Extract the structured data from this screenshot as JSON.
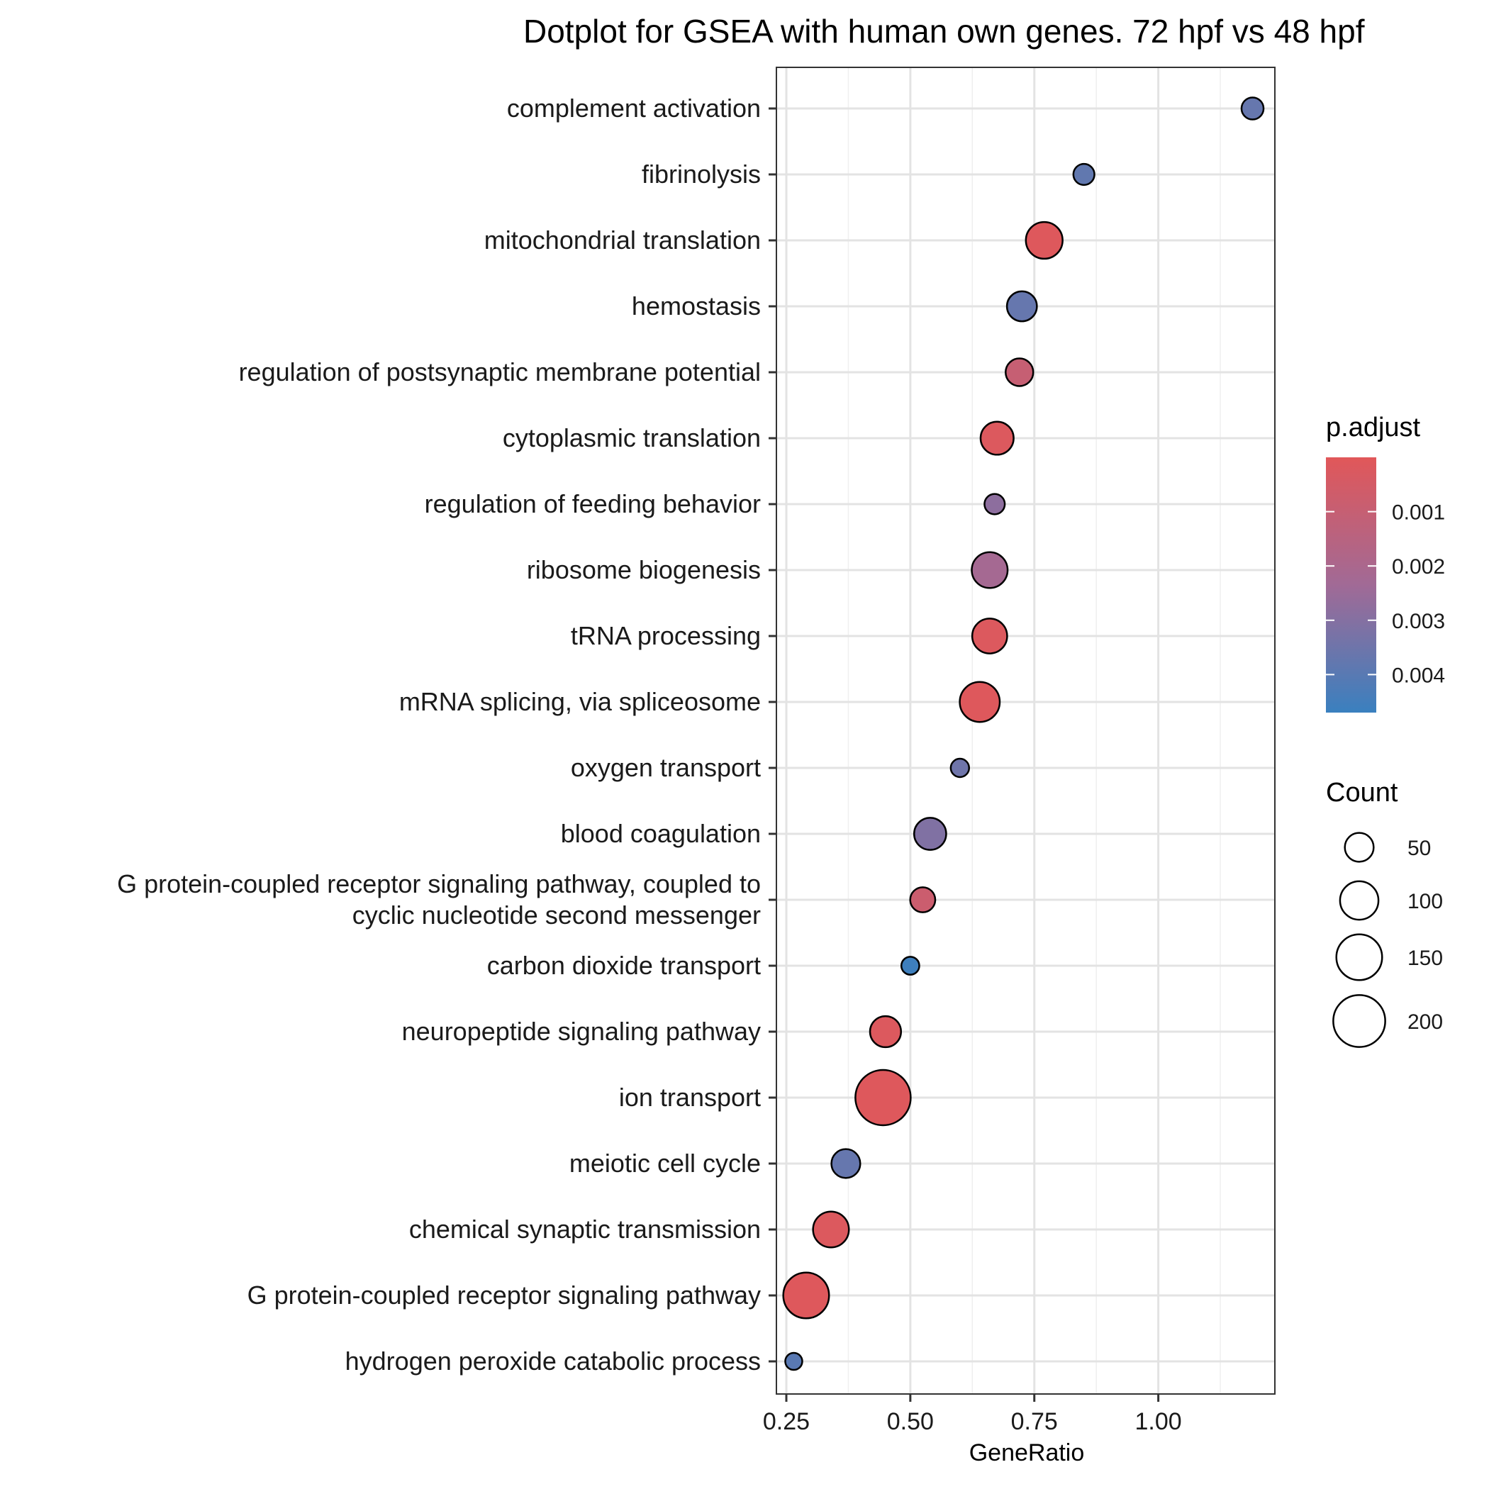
{
  "chart_data": {
    "type": "scatter",
    "title": "Dotplot for GSEA with human own genes. 72 hpf vs 48 hpf",
    "xlabel": "GeneRatio",
    "ylabel": "",
    "xlim": [
      0.23,
      1.235
    ],
    "xticks": [
      0.25,
      0.5,
      0.75,
      1.0
    ],
    "xtick_labels": [
      "0.25",
      "0.50",
      "0.75",
      "1.00"
    ],
    "grid": true,
    "categories": [
      "complement activation",
      "fibrinolysis",
      "mitochondrial translation",
      "hemostasis",
      "regulation of postsynaptic membrane potential",
      "cytoplasmic translation",
      "regulation of feeding behavior",
      "ribosome biogenesis",
      "tRNA processing",
      "mRNA splicing, via spliceosome",
      "oxygen transport",
      "blood coagulation",
      "G protein-coupled receptor signaling pathway, coupled to cyclic nucleotide second messenger",
      "carbon dioxide transport",
      "neuropeptide signaling pathway",
      "ion transport",
      "meiotic cell cycle",
      "chemical synaptic transmission",
      "G protein-coupled receptor signaling pathway",
      "hydrogen peroxide catabolic process"
    ],
    "category_lines": [
      [
        "complement activation"
      ],
      [
        "fibrinolysis"
      ],
      [
        "mitochondrial translation"
      ],
      [
        "hemostasis"
      ],
      [
        "regulation of postsynaptic membrane potential"
      ],
      [
        "cytoplasmic translation"
      ],
      [
        "regulation of feeding behavior"
      ],
      [
        "ribosome biogenesis"
      ],
      [
        "tRNA processing"
      ],
      [
        "mRNA splicing, via spliceosome"
      ],
      [
        "oxygen transport"
      ],
      [
        "blood coagulation"
      ],
      [
        "G protein-coupled receptor signaling pathway, coupled to",
        "cyclic nucleotide second messenger"
      ],
      [
        "carbon dioxide transport"
      ],
      [
        "neuropeptide signaling pathway"
      ],
      [
        "ion transport"
      ],
      [
        "meiotic cell cycle"
      ],
      [
        "chemical synaptic transmission"
      ],
      [
        "G protein-coupled receptor signaling pathway"
      ],
      [
        "hydrogen peroxide catabolic process"
      ]
    ],
    "points": [
      {
        "term": "complement activation",
        "gene_ratio": 1.19,
        "count": 25,
        "p_adjust": 0.0037
      },
      {
        "term": "fibrinolysis",
        "gene_ratio": 0.85,
        "count": 22,
        "p_adjust": 0.0038
      },
      {
        "term": "mitochondrial translation",
        "gene_ratio": 0.77,
        "count": 90,
        "p_adjust": 0.0001
      },
      {
        "term": "hemostasis",
        "gene_ratio": 0.725,
        "count": 55,
        "p_adjust": 0.0037
      },
      {
        "term": "regulation of postsynaptic membrane potential",
        "gene_ratio": 0.72,
        "count": 45,
        "p_adjust": 0.001
      },
      {
        "term": "cytoplasmic translation",
        "gene_ratio": 0.675,
        "count": 70,
        "p_adjust": 0.0002
      },
      {
        "term": "regulation of feeding behavior",
        "gene_ratio": 0.67,
        "count": 20,
        "p_adjust": 0.0028
      },
      {
        "term": "ribosome biogenesis",
        "gene_ratio": 0.66,
        "count": 85,
        "p_adjust": 0.0022
      },
      {
        "term": "tRNA processing",
        "gene_ratio": 0.66,
        "count": 80,
        "p_adjust": 0.0002
      },
      {
        "term": "mRNA splicing, via spliceosome",
        "gene_ratio": 0.64,
        "count": 110,
        "p_adjust": 0.0001
      },
      {
        "term": "oxygen transport",
        "gene_ratio": 0.6,
        "count": 15,
        "p_adjust": 0.0035
      },
      {
        "term": "blood coagulation",
        "gene_ratio": 0.54,
        "count": 65,
        "p_adjust": 0.0031
      },
      {
        "term": "G protein-coupled receptor signaling pathway, coupled to cyclic nucleotide second messenger",
        "gene_ratio": 0.525,
        "count": 35,
        "p_adjust": 0.0008
      },
      {
        "term": "carbon dioxide transport",
        "gene_ratio": 0.5,
        "count": 14,
        "p_adjust": 0.0046
      },
      {
        "term": "neuropeptide signaling pathway",
        "gene_ratio": 0.45,
        "count": 60,
        "p_adjust": 0.0002
      },
      {
        "term": "ion transport",
        "gene_ratio": 0.445,
        "count": 230,
        "p_adjust": 0.0001
      },
      {
        "term": "meiotic cell cycle",
        "gene_ratio": 0.37,
        "count": 50,
        "p_adjust": 0.0037
      },
      {
        "term": "chemical synaptic transmission",
        "gene_ratio": 0.34,
        "count": 85,
        "p_adjust": 0.0002
      },
      {
        "term": "G protein-coupled receptor signaling pathway",
        "gene_ratio": 0.29,
        "count": 150,
        "p_adjust": 0.0001
      },
      {
        "term": "hydrogen peroxide catabolic process",
        "gene_ratio": 0.265,
        "count": 12,
        "p_adjust": 0.004
      }
    ],
    "color_legend": {
      "title": "p.adjust",
      "range": [
        0.0,
        0.0047
      ],
      "ticks": [
        0.001,
        0.002,
        0.003,
        0.004
      ],
      "tick_labels": [
        "0.001",
        "0.002",
        "0.003",
        "0.004"
      ],
      "low_color": "#e15759",
      "high_color": "#3a80bf"
    },
    "size_legend": {
      "title": "Count",
      "values": [
        50,
        100,
        150,
        200
      ],
      "labels": [
        "50",
        "100",
        "150",
        "200"
      ],
      "count_range": [
        12,
        230
      ]
    },
    "legend_position": "right"
  }
}
